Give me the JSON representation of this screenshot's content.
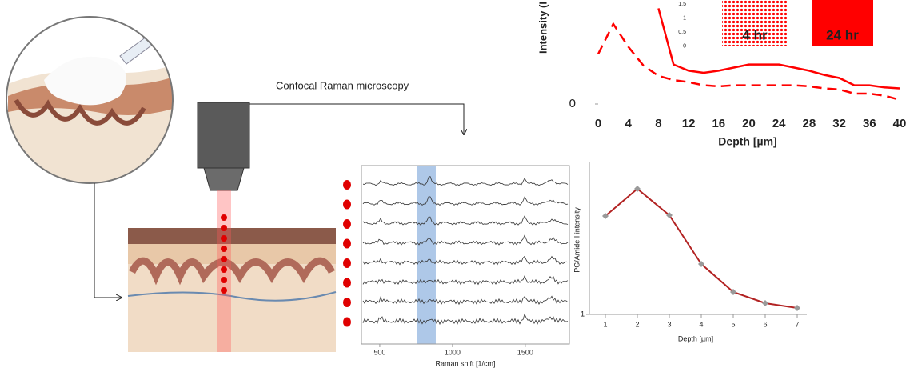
{
  "labels": {
    "microscopy": "Confocal Raman microscopy"
  },
  "chart_data": [
    {
      "type": "line",
      "y_label": "Intensity (I",
      "x_label": "Depth [µm]",
      "x": [
        0,
        2,
        4,
        6,
        8,
        10,
        12,
        14,
        16,
        18,
        20,
        22,
        24,
        26,
        28,
        30,
        32,
        34,
        36,
        38,
        40
      ],
      "series": [
        {
          "name": "4 hr",
          "color": "#ff0000",
          "style": "dashed",
          "values": [
            4.8,
            7.7,
            5.5,
            3.7,
            2.7,
            2.3,
            2.1,
            1.8,
            1.7,
            1.8,
            1.8,
            1.8,
            1.8,
            1.8,
            1.7,
            1.5,
            1.4,
            1.0,
            1.0,
            0.8,
            0.4
          ]
        },
        {
          "name": "24 hr",
          "color": "#ff0000",
          "style": "solid",
          "values": [
            null,
            null,
            null,
            null,
            9.2,
            3.8,
            3.2,
            3.0,
            3.2,
            3.5,
            3.8,
            3.8,
            3.8,
            3.5,
            3.2,
            2.8,
            2.5,
            1.8,
            1.8,
            1.6,
            1.5
          ]
        }
      ],
      "xlim": [
        0,
        40
      ],
      "xticks": [
        0,
        4,
        8,
        12,
        16,
        20,
        24,
        28,
        32,
        36,
        40
      ],
      "ylim": [
        0,
        10
      ],
      "yticks": [
        0
      ],
      "inset_yticks": [
        1.5,
        1,
        0.5,
        0
      ]
    },
    {
      "type": "spectra",
      "x_label": "Raman shift [1/cm]",
      "xlim": [
        374,
        1803
      ],
      "xticks": [
        500,
        1000,
        1500
      ],
      "highlight": [
        755,
        885
      ],
      "highlight_color": "#aec8e8"
    },
    {
      "type": "line",
      "y_label": "PG/Amide I intensity",
      "x_label": "Depth [µm]",
      "x": [
        1,
        2,
        3,
        4,
        5,
        6,
        7
      ],
      "series": [
        {
          "color": "#b22222",
          "marker_color": "#9a9a9a",
          "style": "solid",
          "values": [
            2.23,
            2.57,
            2.24,
            1.63,
            1.28,
            1.14,
            1.08
          ]
        }
      ],
      "xlim": [
        0.5,
        7.3
      ],
      "xticks": [
        1,
        2,
        3,
        4,
        5,
        6,
        7
      ],
      "ylim": [
        1,
        2.9
      ],
      "yticks": [
        1
      ]
    }
  ]
}
